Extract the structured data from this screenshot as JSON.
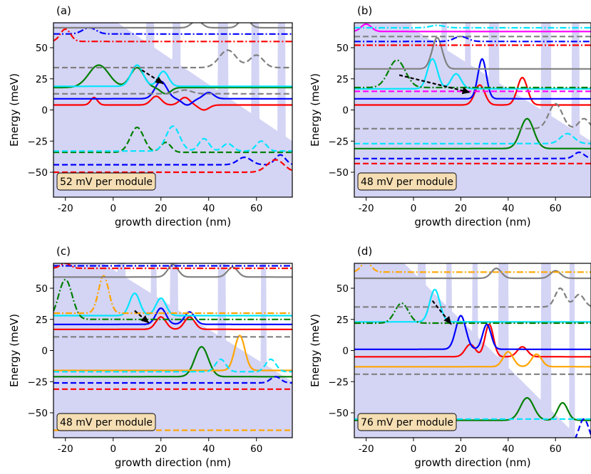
{
  "figure": {
    "x_axis_label": "growth direction (nm)",
    "y_axis_label": "Energy (meV)"
  },
  "chart_data": [
    {
      "type": "line",
      "panel_label": "(a)",
      "annotation": "52 mV per module",
      "xlim": [
        -25,
        75
      ],
      "ylim": [
        -70,
        70
      ],
      "xticks": [
        -20,
        0,
        20,
        40,
        60
      ],
      "yticks": [
        -50,
        -25,
        0,
        25,
        50
      ],
      "band_offset": 105,
      "slope": -1.3,
      "barriers": [
        [
          -17,
          -14
        ],
        [
          -1,
          2
        ],
        [
          14,
          17
        ],
        [
          25,
          28
        ],
        [
          44,
          48
        ],
        [
          58,
          61
        ],
        [
          69,
          72
        ]
      ],
      "arrow": {
        "from": [
          12,
          32
        ],
        "to": [
          21,
          21
        ]
      },
      "series": [
        {
          "color": "#ff0000",
          "dash": "solid",
          "base": 4,
          "lobes": [
            [
              -8,
              6,
              2
            ],
            [
              18,
              7,
              3
            ],
            [
              30,
              6,
              3
            ],
            [
              38,
              -4,
              3
            ]
          ]
        },
        {
          "color": "#0000ff",
          "dash": "solid",
          "base": 9,
          "lobes": [
            [
              20,
              14,
              3.5
            ],
            [
              31,
              -5,
              3
            ],
            [
              40,
              5,
              3
            ]
          ]
        },
        {
          "color": "#008000",
          "dash": "solid",
          "base": 18,
          "lobes": [
            [
              -6,
              18,
              6
            ],
            [
              10,
              16,
              4
            ],
            [
              22,
              -5,
              3
            ]
          ]
        },
        {
          "color": "#00e5ff",
          "dash": "solid",
          "base": 19,
          "lobes": [
            [
              10,
              17,
              3.5
            ],
            [
              21,
              12,
              3
            ]
          ]
        },
        {
          "color": "#808080",
          "dash": "dash",
          "base": 13,
          "lobes": [
            [
              30,
              3,
              4
            ]
          ]
        },
        {
          "color": "#808080",
          "dash": "dash",
          "base": 34,
          "lobes": [
            [
              48,
              14,
              5
            ],
            [
              60,
              10,
              4
            ]
          ]
        },
        {
          "color": "#008000",
          "dash": "dash",
          "base": -34,
          "lobes": [
            [
              10,
              20,
              4
            ],
            [
              22,
              8,
              3
            ]
          ]
        },
        {
          "color": "#00e5ff",
          "dash": "dash",
          "base": -33,
          "lobes": [
            [
              25,
              20,
              4
            ],
            [
              38,
              10,
              3
            ],
            [
              48,
              6,
              3
            ],
            [
              62,
              8,
              3
            ]
          ]
        },
        {
          "color": "#0000ff",
          "dash": "dash",
          "base": -44,
          "lobes": [
            [
              55,
              6,
              4
            ],
            [
              70,
              8,
              3
            ]
          ]
        },
        {
          "color": "#ff0000",
          "dash": "dash",
          "base": -50,
          "lobes": [
            [
              68,
              10,
              5
            ]
          ]
        },
        {
          "color": "#0000ff",
          "dash": "dashdot",
          "base": 61,
          "lobes": [
            [
              -10,
              5,
              4
            ]
          ]
        },
        {
          "color": "#ff0000",
          "dash": "dashdot",
          "base": 55,
          "lobes": [
            [
              -20,
              10,
              3
            ]
          ]
        },
        {
          "color": "#808080",
          "dash": "solid",
          "base": 66,
          "lobes": [
            [
              35,
              6,
              3
            ],
            [
              55,
              8,
              3
            ]
          ]
        }
      ]
    },
    {
      "type": "line",
      "panel_label": "(b)",
      "annotation": "48 mV per module",
      "xlim": [
        -25,
        75
      ],
      "ylim": [
        -70,
        70
      ],
      "xticks": [
        -20,
        0,
        20,
        40,
        60
      ],
      "yticks": [
        -50,
        -25,
        0,
        25,
        50
      ],
      "band_offset": 95,
      "slope": -1.2,
      "barriers": [
        [
          -19,
          -16
        ],
        [
          -4,
          -1
        ],
        [
          12,
          14
        ],
        [
          22,
          24
        ],
        [
          32,
          36
        ],
        [
          54,
          58
        ],
        [
          67,
          70
        ]
      ],
      "arrow": {
        "from": [
          -6,
          28
        ],
        "to": [
          24,
          14
        ]
      },
      "series": [
        {
          "color": "#ff0000",
          "dash": "solid",
          "base": 4,
          "lobes": [
            [
              28,
              16,
              3
            ],
            [
              46,
              22,
              3
            ]
          ]
        },
        {
          "color": "#0000ff",
          "dash": "solid",
          "base": 9,
          "lobes": [
            [
              29,
              32,
              2.5
            ]
          ]
        },
        {
          "color": "#008000",
          "dash": "solid",
          "base": -31,
          "lobes": [
            [
              48,
              24,
              4
            ]
          ]
        },
        {
          "color": "#00e5ff",
          "dash": "solid",
          "base": 17,
          "lobes": [
            [
              8,
              24,
              3
            ],
            [
              18,
              12,
              3
            ]
          ]
        },
        {
          "color": "#808080",
          "dash": "solid",
          "base": 33,
          "lobes": [
            [
              10,
              25,
              3
            ]
          ]
        },
        {
          "color": "#008000",
          "dash": "dashdot",
          "base": 18,
          "lobes": [
            [
              -7,
              22,
              5
            ]
          ]
        },
        {
          "color": "#ff00ff",
          "dash": "dash",
          "base": 15,
          "lobes": []
        },
        {
          "color": "#808080",
          "dash": "dash",
          "base": -15,
          "lobes": [
            [
              60,
              20,
              4
            ],
            [
              72,
              8,
              3
            ]
          ]
        },
        {
          "color": "#00e5ff",
          "dash": "dash",
          "base": -27,
          "lobes": [
            [
              65,
              8,
              4
            ]
          ]
        },
        {
          "color": "#0000ff",
          "dash": "dash",
          "base": -39,
          "lobes": [
            [
              70,
              5,
              3
            ]
          ]
        },
        {
          "color": "#ff0000",
          "dash": "dash",
          "base": -43,
          "lobes": []
        },
        {
          "color": "#ff00ff",
          "dash": "solid",
          "base": 63,
          "lobes": [
            [
              -20,
              6,
              3
            ]
          ]
        },
        {
          "color": "#0000ff",
          "dash": "dashdot",
          "base": 55,
          "lobes": [
            [
              20,
              4,
              4
            ]
          ]
        },
        {
          "color": "#ff0000",
          "dash": "dashdot",
          "base": 52,
          "lobes": []
        },
        {
          "color": "#808080",
          "dash": "dash",
          "base": 59,
          "lobes": []
        },
        {
          "color": "#00e5ff",
          "dash": "dashdot",
          "base": 66,
          "lobes": [
            [
              10,
              2,
              4
            ]
          ]
        }
      ]
    },
    {
      "type": "line",
      "panel_label": "(c)",
      "annotation": "48 mV per module",
      "xlim": [
        -25,
        75
      ],
      "ylim": [
        -70,
        70
      ],
      "xticks": [
        -20,
        0,
        20,
        40,
        60
      ],
      "yticks": [
        -50,
        -25,
        0,
        25,
        50
      ],
      "band_offset": 95,
      "slope": -1.2,
      "barriers": [
        [
          -14,
          -11
        ],
        [
          2,
          5
        ],
        [
          16,
          18
        ],
        [
          24,
          27
        ],
        [
          44,
          47
        ],
        [
          62,
          64
        ]
      ],
      "arrow": {
        "from": [
          9,
          32
        ],
        "to": [
          15,
          22
        ]
      },
      "series": [
        {
          "color": "#ff0000",
          "dash": "solid",
          "base": 17,
          "lobes": [
            [
              20,
              10,
              3
            ],
            [
              32,
              10,
              3
            ]
          ]
        },
        {
          "color": "#0000ff",
          "dash": "solid",
          "base": 21,
          "lobes": [
            [
              20,
              13,
              3
            ],
            [
              32,
              10,
              3
            ]
          ]
        },
        {
          "color": "#008000",
          "dash": "solid",
          "base": -21,
          "lobes": [
            [
              37,
              24,
              4
            ]
          ]
        },
        {
          "color": "#00e5ff",
          "dash": "solid",
          "base": 28,
          "lobes": [
            [
              9,
              18,
              3
            ],
            [
              20,
              14,
              3
            ]
          ]
        },
        {
          "color": "#ffa500",
          "dash": "solid",
          "base": -16,
          "lobes": [
            [
              53,
              28,
              3
            ]
          ]
        },
        {
          "color": "#008000",
          "dash": "dashdot",
          "base": 25,
          "lobes": [
            [
              -20,
              32,
              4
            ]
          ]
        },
        {
          "color": "#ffa500",
          "dash": "dashdot",
          "base": 30,
          "lobes": [
            [
              -4,
              30,
              3
            ]
          ]
        },
        {
          "color": "#808080",
          "dash": "dash",
          "base": 11,
          "lobes": []
        },
        {
          "color": "#00e5ff",
          "dash": "dash",
          "base": -17,
          "lobes": [
            [
              45,
              10,
              3
            ],
            [
              66,
              10,
              3
            ]
          ]
        },
        {
          "color": "#0000ff",
          "dash": "dash",
          "base": -26,
          "lobes": [
            [
              68,
              5,
              3
            ]
          ]
        },
        {
          "color": "#ff0000",
          "dash": "dash",
          "base": -31,
          "lobes": []
        },
        {
          "color": "#ffa500",
          "dash": "dash",
          "base": -64,
          "lobes": []
        },
        {
          "color": "#808080",
          "dash": "solid",
          "base": 59,
          "lobes": [
            [
              25,
              10,
              3
            ],
            [
              50,
              8,
              3
            ]
          ]
        },
        {
          "color": "#0000ff",
          "dash": "dashdot",
          "base": 68,
          "lobes": []
        },
        {
          "color": "#ff0000",
          "dash": "dashdot",
          "base": 66,
          "lobes": [
            [
              -20,
              4,
              3
            ]
          ]
        }
      ]
    },
    {
      "type": "line",
      "panel_label": "(d)",
      "annotation": "76 mV per module",
      "xlim": [
        -25,
        75
      ],
      "ylim": [
        -70,
        70
      ],
      "xticks": [
        -20,
        0,
        20,
        40,
        60
      ],
      "yticks": [
        -50,
        -25,
        0,
        25,
        50
      ],
      "band_offset": 110,
      "slope": -1.9,
      "barriers": [
        [
          -18,
          -15
        ],
        [
          2,
          5
        ],
        [
          14,
          16
        ],
        [
          25,
          27
        ],
        [
          36,
          40
        ],
        [
          54,
          58
        ],
        [
          66,
          68
        ]
      ],
      "arrow": {
        "from": [
          8,
          40
        ],
        "to": [
          16,
          21
        ]
      },
      "series": [
        {
          "color": "#ff0000",
          "dash": "solid",
          "base": -5,
          "lobes": [
            [
              24,
              10,
              3
            ],
            [
              32,
              26,
              2.5
            ],
            [
              46,
              8,
              3
            ]
          ]
        },
        {
          "color": "#0000ff",
          "dash": "solid",
          "base": 1,
          "lobes": [
            [
              20,
              27,
              3
            ],
            [
              31,
              20,
              2.5
            ]
          ]
        },
        {
          "color": "#008000",
          "dash": "solid",
          "base": -56,
          "lobes": [
            [
              48,
              18,
              4
            ],
            [
              63,
              14,
              3
            ]
          ]
        },
        {
          "color": "#00e5ff",
          "dash": "solid",
          "base": 23,
          "lobes": [
            [
              9,
              26,
              3
            ]
          ]
        },
        {
          "color": "#ffa500",
          "dash": "solid",
          "base": -13,
          "lobes": [
            [
              40,
              12,
              3
            ],
            [
              52,
              10,
              3
            ]
          ]
        },
        {
          "color": "#008000",
          "dash": "dashdot",
          "base": 22,
          "lobes": [
            [
              -5,
              16,
              4
            ]
          ]
        },
        {
          "color": "#00e5ff",
          "dash": "dash",
          "base": -55,
          "lobes": []
        },
        {
          "color": "#808080",
          "dash": "dash",
          "base": -19,
          "lobes": []
        },
        {
          "color": "#808080",
          "dash": "dash",
          "base": 35,
          "lobes": [
            [
              62,
              15,
              3
            ],
            [
              70,
              10,
              3
            ]
          ]
        },
        {
          "color": "#808080",
          "dash": "solid",
          "base": 58,
          "lobes": [
            [
              35,
              8,
              3
            ],
            [
              60,
              6,
              3
            ]
          ]
        },
        {
          "color": "#ffa500",
          "dash": "dashdot",
          "base": 63,
          "lobes": [
            [
              -20,
              8,
              3
            ]
          ]
        },
        {
          "color": "#0000ff",
          "dash": "dash",
          "base": -75,
          "lobes": [
            [
              72,
              20,
              3
            ]
          ]
        }
      ]
    }
  ]
}
